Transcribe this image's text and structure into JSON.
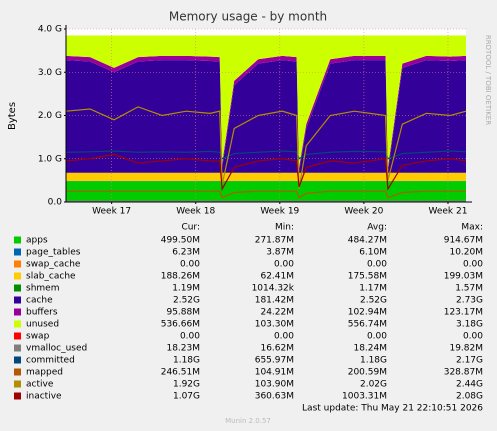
{
  "chart_data": {
    "type": "stacked-area",
    "title": "Memory usage - by month",
    "y_label": "Bytes",
    "side_text": "RRDTOOL / TOBI OETIKER",
    "last_update": "Last update: Thu May 21 22:10:51 2026",
    "footer": "Munin 2.0.57",
    "stat_headers": [
      "Cur:",
      "Min:",
      "Avg:",
      "Max:"
    ],
    "grid": true,
    "xlim": [
      0,
      33.3
    ],
    "xticks": [
      {
        "value": 3.8,
        "label": "Week 17"
      },
      {
        "value": 10.8,
        "label": "Week 18"
      },
      {
        "value": 17.8,
        "label": "Week 19"
      },
      {
        "value": 24.8,
        "label": "Week 20"
      },
      {
        "value": 31.8,
        "label": "Week 21"
      }
    ],
    "ylim": [
      0,
      4
    ],
    "yticks": [
      {
        "value": 0,
        "label": "0.0"
      },
      {
        "value": 1,
        "label": "1.0 G"
      },
      {
        "value": 2,
        "label": "2.0 G"
      },
      {
        "value": 3,
        "label": "3.0 G"
      },
      {
        "value": 4,
        "label": "4.0 G"
      }
    ],
    "x": [
      0,
      2,
      4,
      6,
      8,
      10,
      12,
      12.8,
      13,
      14,
      16,
      18,
      19.2,
      19.4,
      20,
      22,
      24,
      26.6,
      26.8,
      28,
      30,
      32,
      33.3
    ],
    "series": [
      {
        "name": "apps",
        "color": "#00cc00",
        "kind": "area",
        "values": [
          0.48,
          0.48,
          0.48,
          0.48,
          0.48,
          0.48,
          0.48,
          0.48,
          0.48,
          0.48,
          0.48,
          0.48,
          0.48,
          0.48,
          0.48,
          0.48,
          0.48,
          0.48,
          0.48,
          0.48,
          0.48,
          0.48,
          0.48
        ],
        "stats": {
          "cur": "499.50M",
          "min": "271.87M",
          "avg": "484.27M",
          "max": "914.67M"
        }
      },
      {
        "name": "page_tables",
        "color": "#0066b3",
        "kind": "area",
        "values": [
          0.006,
          0.006,
          0.006,
          0.006,
          0.006,
          0.006,
          0.006,
          0.006,
          0.006,
          0.006,
          0.006,
          0.006,
          0.006,
          0.006,
          0.006,
          0.006,
          0.006,
          0.006,
          0.006,
          0.006,
          0.006,
          0.006,
          0.006
        ],
        "stats": {
          "cur": "6.23M",
          "min": "3.87M",
          "avg": "6.10M",
          "max": "10.20M"
        }
      },
      {
        "name": "swap_cache",
        "color": "#ff8000",
        "kind": "area",
        "values": [
          0,
          0,
          0,
          0,
          0,
          0,
          0,
          0,
          0,
          0,
          0,
          0,
          0,
          0,
          0,
          0,
          0,
          0,
          0,
          0,
          0,
          0,
          0
        ],
        "stats": {
          "cur": "0.00",
          "min": "0.00",
          "avg": "0.00",
          "max": "0.00"
        }
      },
      {
        "name": "slab_cache",
        "color": "#ffcc00",
        "kind": "area",
        "values": [
          0.19,
          0.19,
          0.19,
          0.19,
          0.19,
          0.19,
          0.19,
          0.19,
          0.19,
          0.19,
          0.19,
          0.19,
          0.19,
          0.19,
          0.19,
          0.19,
          0.19,
          0.19,
          0.19,
          0.19,
          0.19,
          0.19,
          0.19
        ],
        "stats": {
          "cur": "188.26M",
          "min": "62.41M",
          "avg": "175.58M",
          "max": "199.03M"
        }
      },
      {
        "name": "shmem",
        "color": "#008f00",
        "kind": "area",
        "values": [
          0.001,
          0.001,
          0.001,
          0.001,
          0.001,
          0.001,
          0.001,
          0.001,
          0.001,
          0.001,
          0.001,
          0.001,
          0.001,
          0.001,
          0.001,
          0.001,
          0.001,
          0.001,
          0.001,
          0.001,
          0.001,
          0.001,
          0.001
        ],
        "stats": {
          "cur": "1.19M",
          "min": "1014.32k",
          "avg": "1.17M",
          "max": "1.57M"
        }
      },
      {
        "name": "cache",
        "color": "#330099",
        "kind": "area",
        "values": [
          2.603,
          2.573,
          2.323,
          2.573,
          2.603,
          2.603,
          2.583,
          2.573,
          0.123,
          2.023,
          2.523,
          2.603,
          2.573,
          0.023,
          1.023,
          2.523,
          2.603,
          2.603,
          0.023,
          2.423,
          2.603,
          2.583,
          2.603
        ],
        "stats": {
          "cur": "2.52G",
          "min": "181.42M",
          "avg": "2.52G",
          "max": "2.73G"
        }
      },
      {
        "name": "buffers",
        "color": "#990099",
        "kind": "area",
        "values": [
          0.1,
          0.1,
          0.1,
          0.1,
          0.1,
          0.1,
          0.1,
          0.1,
          0.1,
          0.1,
          0.1,
          0.1,
          0.1,
          0.1,
          0.1,
          0.1,
          0.1,
          0.1,
          0.1,
          0.1,
          0.1,
          0.1,
          0.1
        ],
        "stats": {
          "cur": "95.88M",
          "min": "24.22M",
          "avg": "102.94M",
          "max": "123.17M"
        }
      },
      {
        "name": "unused",
        "color": "#ccff00",
        "kind": "area",
        "values": [
          0.47,
          0.5,
          0.75,
          0.5,
          0.47,
          0.47,
          0.49,
          0.5,
          2.95,
          1.05,
          0.55,
          0.47,
          0.5,
          3.05,
          2.05,
          0.55,
          0.47,
          0.47,
          3.05,
          0.65,
          0.47,
          0.49,
          0.47
        ],
        "stats": {
          "cur": "536.66M",
          "min": "103.30M",
          "avg": "556.74M",
          "max": "3.18G"
        }
      },
      {
        "name": "swap",
        "color": "#ff0000",
        "kind": "area",
        "values": [
          0,
          0,
          0,
          0,
          0,
          0,
          0,
          0,
          0,
          0,
          0,
          0,
          0,
          0,
          0,
          0,
          0,
          0,
          0,
          0,
          0,
          0,
          0
        ],
        "stats": {
          "cur": "0.00",
          "min": "0.00",
          "avg": "0.00",
          "max": "0.00"
        }
      },
      {
        "name": "vmalloc_used",
        "color": "#7f7f7f",
        "kind": "line",
        "values": [
          0.018,
          0.018,
          0.018,
          0.018,
          0.018,
          0.018,
          0.018,
          0.018,
          0.018,
          0.018,
          0.018,
          0.018,
          0.018,
          0.018,
          0.018,
          0.018,
          0.018,
          0.018,
          0.018,
          0.018,
          0.018,
          0.018,
          0.018
        ],
        "stats": {
          "cur": "18.23M",
          "min": "16.62M",
          "avg": "18.24M",
          "max": "19.82M"
        }
      },
      {
        "name": "committed",
        "color": "#00487d",
        "kind": "line",
        "values": [
          1.15,
          1.16,
          1.18,
          1.15,
          1.16,
          1.15,
          1.17,
          1.15,
          1.0,
          1.12,
          1.15,
          1.18,
          1.16,
          1.0,
          1.1,
          1.15,
          1.17,
          1.16,
          1.0,
          1.12,
          1.15,
          1.18,
          1.16
        ],
        "stats": {
          "cur": "1.18G",
          "min": "655.97M",
          "avg": "1.18G",
          "max": "2.17G"
        }
      },
      {
        "name": "mapped",
        "color": "#b35a00",
        "kind": "line",
        "values": [
          0.25,
          0.25,
          0.25,
          0.25,
          0.25,
          0.25,
          0.25,
          0.25,
          0.1,
          0.22,
          0.25,
          0.25,
          0.25,
          0.1,
          0.2,
          0.25,
          0.25,
          0.25,
          0.1,
          0.22,
          0.25,
          0.25,
          0.25
        ],
        "stats": {
          "cur": "246.51M",
          "min": "104.91M",
          "avg": "200.59M",
          "max": "328.87M"
        }
      },
      {
        "name": "active",
        "color": "#b38f00",
        "kind": "line",
        "values": [
          2.1,
          2.15,
          1.9,
          2.2,
          2.0,
          2.1,
          2.05,
          2.1,
          0.4,
          1.7,
          2.0,
          2.1,
          2.0,
          0.3,
          1.3,
          2.0,
          2.1,
          2.0,
          0.5,
          1.8,
          2.05,
          2.0,
          2.1
        ],
        "stats": {
          "cur": "1.92G",
          "min": "103.90M",
          "avg": "2.02G",
          "max": "2.44G"
        }
      },
      {
        "name": "inactive",
        "color": "#a00000",
        "kind": "line",
        "values": [
          0.95,
          1.0,
          1.1,
          0.9,
          0.95,
          1.0,
          0.95,
          0.95,
          0.3,
          0.8,
          0.95,
          1.0,
          0.95,
          0.35,
          0.8,
          0.95,
          0.9,
          1.0,
          0.3,
          0.85,
          0.95,
          1.0,
          0.95
        ],
        "stats": {
          "cur": "1.07G",
          "min": "360.63M",
          "avg": "1003.31M",
          "max": "2.08G"
        }
      }
    ]
  }
}
